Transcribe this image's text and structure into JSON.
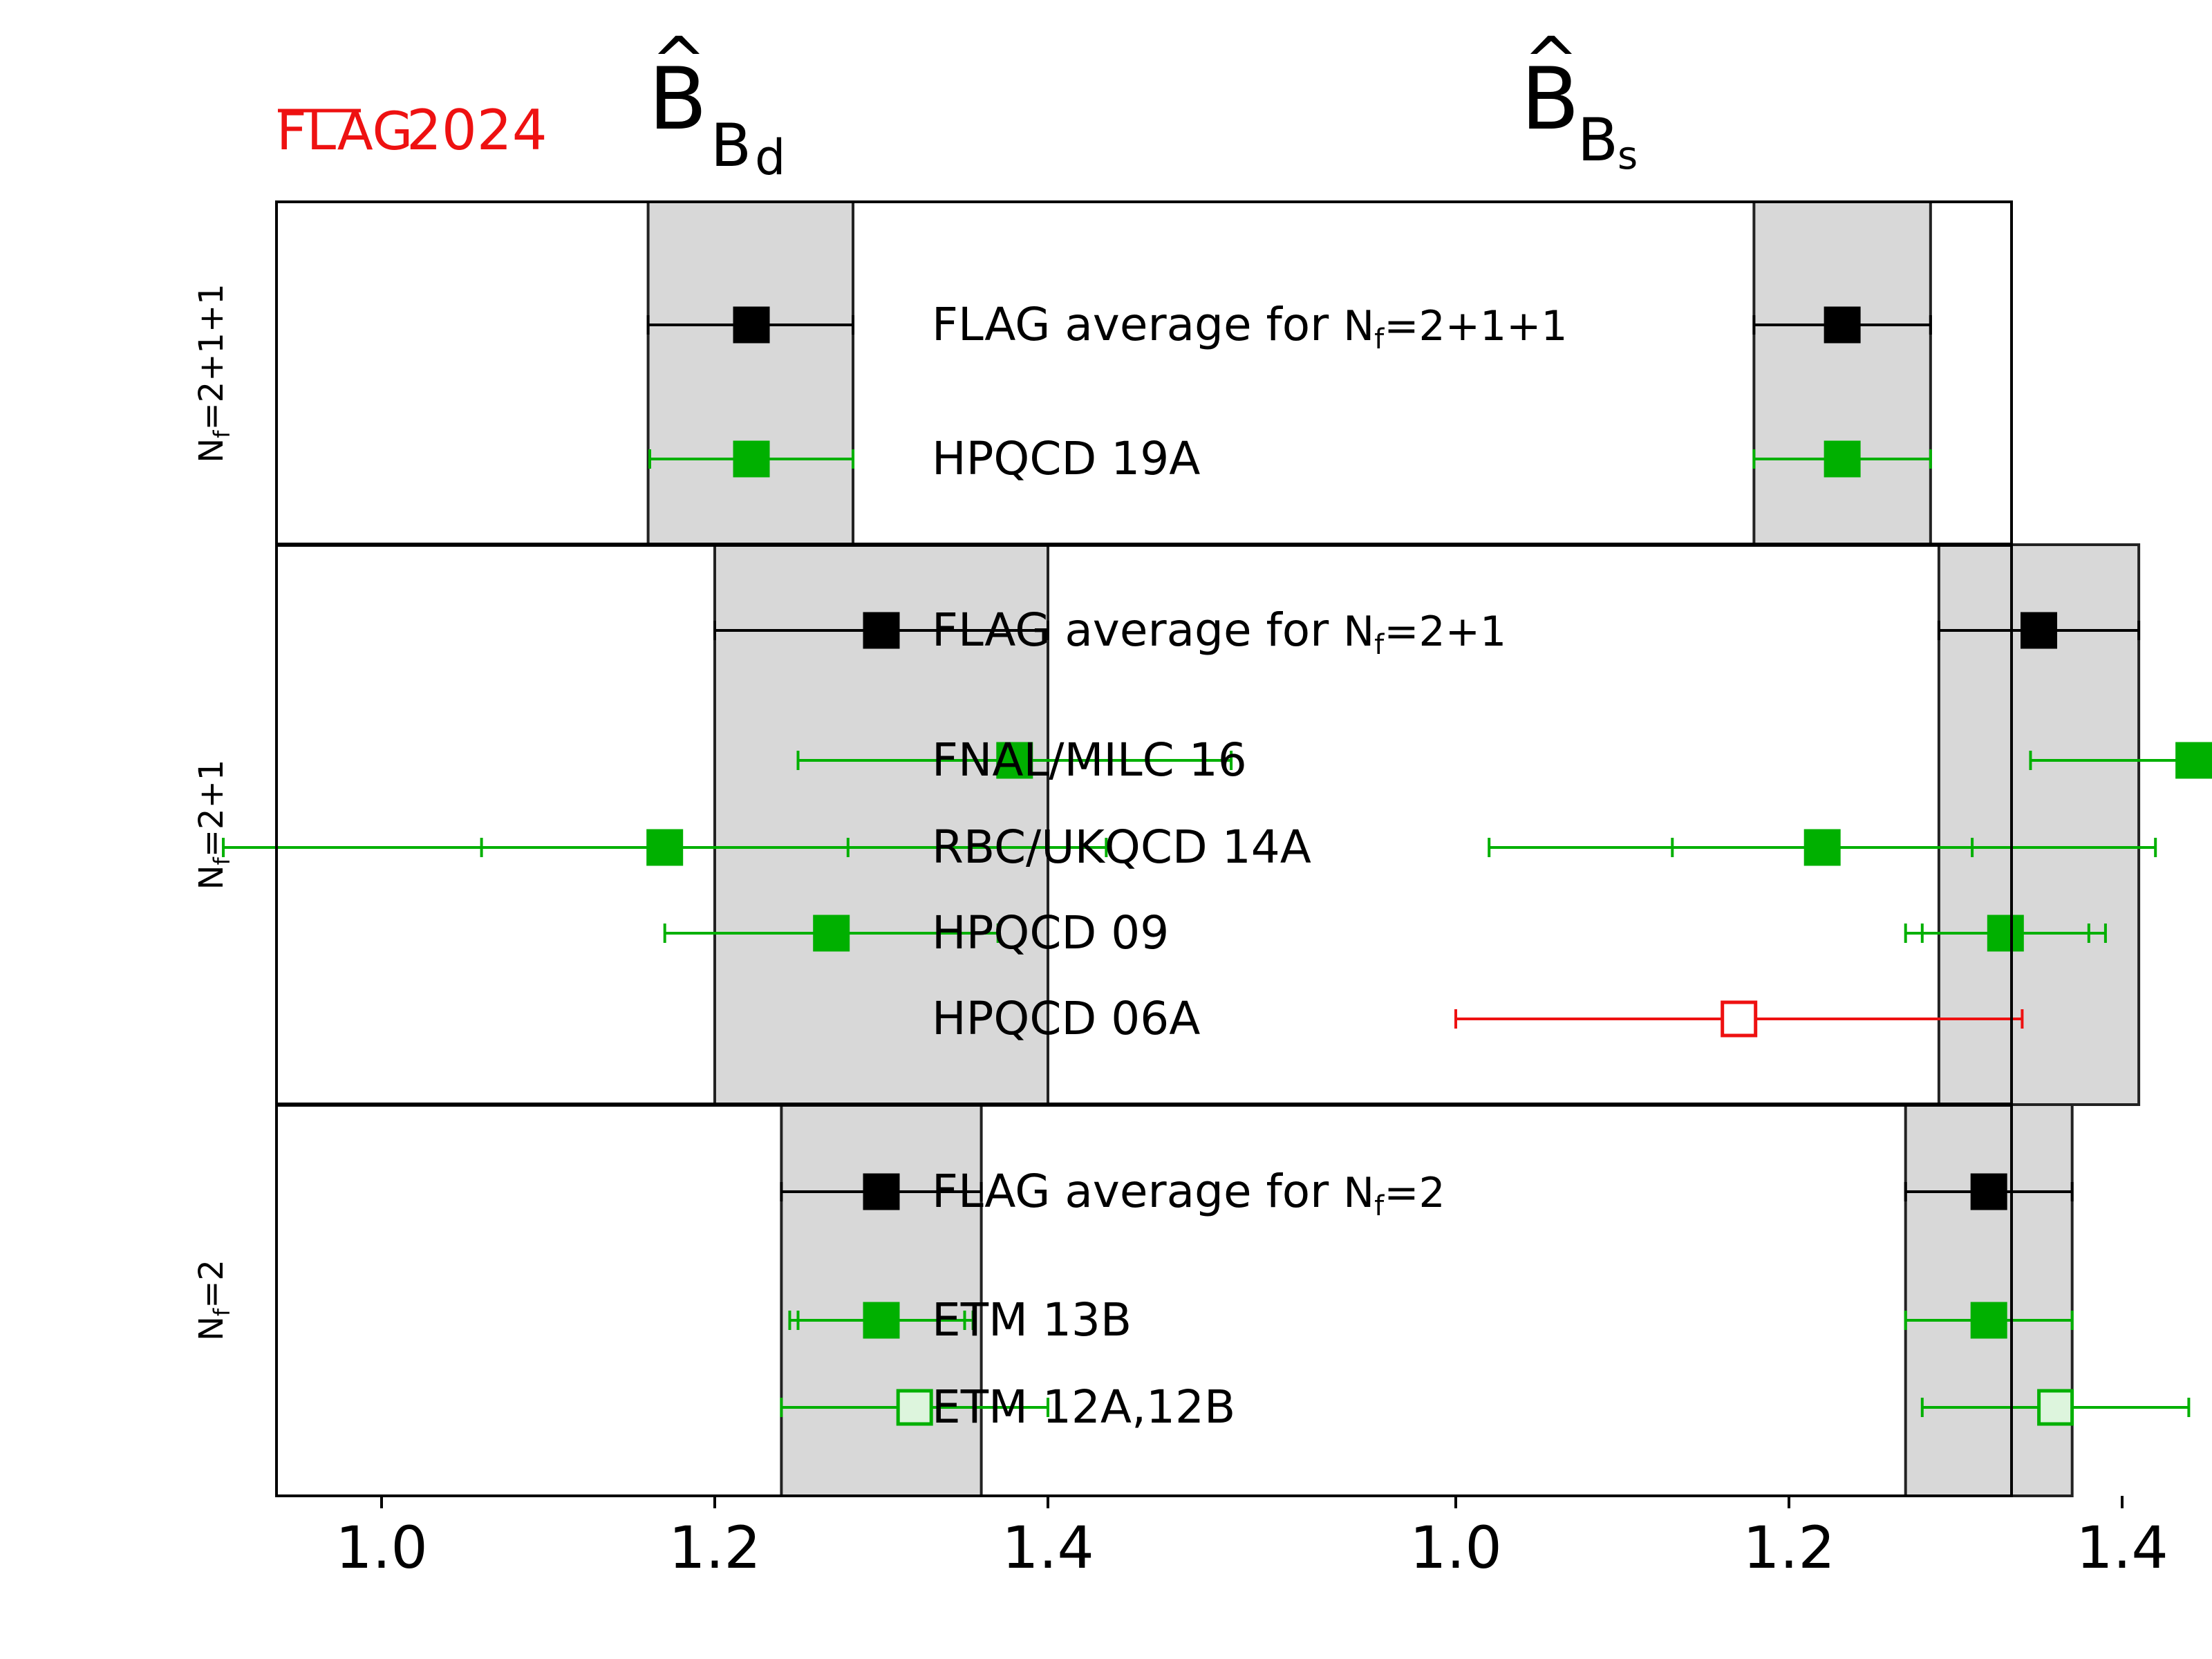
{
  "logo": {
    "flag": "FLAG",
    "year": "2024",
    "color": "#ee1111"
  },
  "colors": {
    "average": "#000000",
    "included": "#00b000",
    "other": "#ee1111",
    "open_fill": "#ddf5dd",
    "band": "#d8d8d8"
  },
  "chart_data": {
    "type": "scatter",
    "description_type": "forest plot with horizontal error bars, two panels",
    "panels": [
      {
        "symbol": "B",
        "hat": "^",
        "subscript": "B",
        "subsubscript": "d",
        "xlim": [
          0.9,
          1.55
        ]
      },
      {
        "symbol": "B",
        "hat": "^",
        "subscript": "B",
        "subsubscript": "s",
        "xlim": [
          0.9,
          1.55
        ]
      }
    ],
    "x_ticks": [
      "1.0",
      "1.2",
      "1.4"
    ],
    "x_tick_values": [
      1.0,
      1.2,
      1.4
    ],
    "groups": [
      {
        "label_N": "N",
        "label_f": "f",
        "label_rest": "=2+1+1",
        "rows": [
          {
            "label": "FLAG average for ",
            "label_N": "N",
            "label_f": "f",
            "label_rest": "=2+1+1",
            "style": "average",
            "Bd": {
              "value": 1.222,
              "lo": 1.16,
              "hi": 1.283
            },
            "Bs": {
              "value": 1.232,
              "lo": 1.179,
              "hi": 1.285
            }
          },
          {
            "label": "HPQCD 19A",
            "style": "filled",
            "Bd": {
              "value": 1.222,
              "lo": 1.161,
              "hi": 1.283
            },
            "Bs": {
              "value": 1.232,
              "lo": 1.179,
              "hi": 1.285
            }
          }
        ]
      },
      {
        "label_N": "N",
        "label_f": "f",
        "label_rest": "=2+1",
        "rows": [
          {
            "label": "FLAG average for ",
            "label_N": "N",
            "label_f": "f",
            "label_rest": "=2+1",
            "style": "average",
            "Bd": {
              "value": 1.3,
              "lo": 1.2,
              "hi": 1.4
            },
            "Bs": {
              "value": 1.35,
              "lo": 1.29,
              "hi": 1.41
            }
          },
          {
            "label": "FNAL/MILC 16",
            "style": "filled",
            "Bd": {
              "value": 1.38,
              "lo": 1.25,
              "hi": 1.51
            },
            "Bs": {
              "value": 1.443,
              "lo": 1.345,
              "hi": 1.545
            }
          },
          {
            "label": "RBC/UKQCD 14A",
            "style": "filled",
            "Bd": {
              "value": 1.17,
              "lo": 0.905,
              "hi": 1.435,
              "stat_lo": 1.06,
              "stat_hi": 1.28
            },
            "Bs": {
              "value": 1.22,
              "lo": 1.02,
              "hi": 1.42,
              "stat_lo": 1.13,
              "stat_hi": 1.31
            }
          },
          {
            "label": "HPQCD 09",
            "style": "filled",
            "Bd": {
              "value": 1.27,
              "lo": 1.17,
              "hi": 1.37
            },
            "Bs": {
              "value": 1.33,
              "lo": 1.27,
              "hi": 1.39,
              "stat_lo": 1.28,
              "stat_hi": 1.38
            }
          },
          {
            "label": "HPQCD 06A",
            "style": "open-red",
            "Bd": null,
            "Bs": {
              "value": 1.17,
              "lo": 1.0,
              "hi": 1.34
            }
          }
        ]
      },
      {
        "label_N": "N",
        "label_f": "f",
        "label_rest": "=2",
        "rows": [
          {
            "label": "FLAG average for ",
            "label_N": "N",
            "label_f": "f",
            "label_rest": "=2",
            "style": "average",
            "Bd": {
              "value": 1.3,
              "lo": 1.24,
              "hi": 1.36
            },
            "Bs": {
              "value": 1.32,
              "lo": 1.27,
              "hi": 1.37
            }
          },
          {
            "label": "ETM 13B",
            "style": "filled",
            "Bd": {
              "value": 1.3,
              "lo": 1.245,
              "hi": 1.355,
              "stat_lo": 1.25,
              "stat_hi": 1.35
            },
            "Bs": {
              "value": 1.32,
              "lo": 1.27,
              "hi": 1.37
            }
          },
          {
            "label": "ETM 12A,12B",
            "style": "open-green",
            "Bd": {
              "value": 1.32,
              "lo": 1.24,
              "hi": 1.4
            },
            "Bs": {
              "value": 1.36,
              "lo": 1.28,
              "hi": 1.44
            }
          }
        ]
      }
    ],
    "bands": [
      {
        "Bd": [
          1.16,
          1.283
        ],
        "Bs": [
          1.179,
          1.285
        ]
      },
      {
        "Bd": [
          1.2,
          1.4
        ],
        "Bs": [
          1.29,
          1.41
        ]
      },
      {
        "Bd": [
          1.24,
          1.36
        ],
        "Bs": [
          1.27,
          1.37
        ]
      }
    ]
  }
}
